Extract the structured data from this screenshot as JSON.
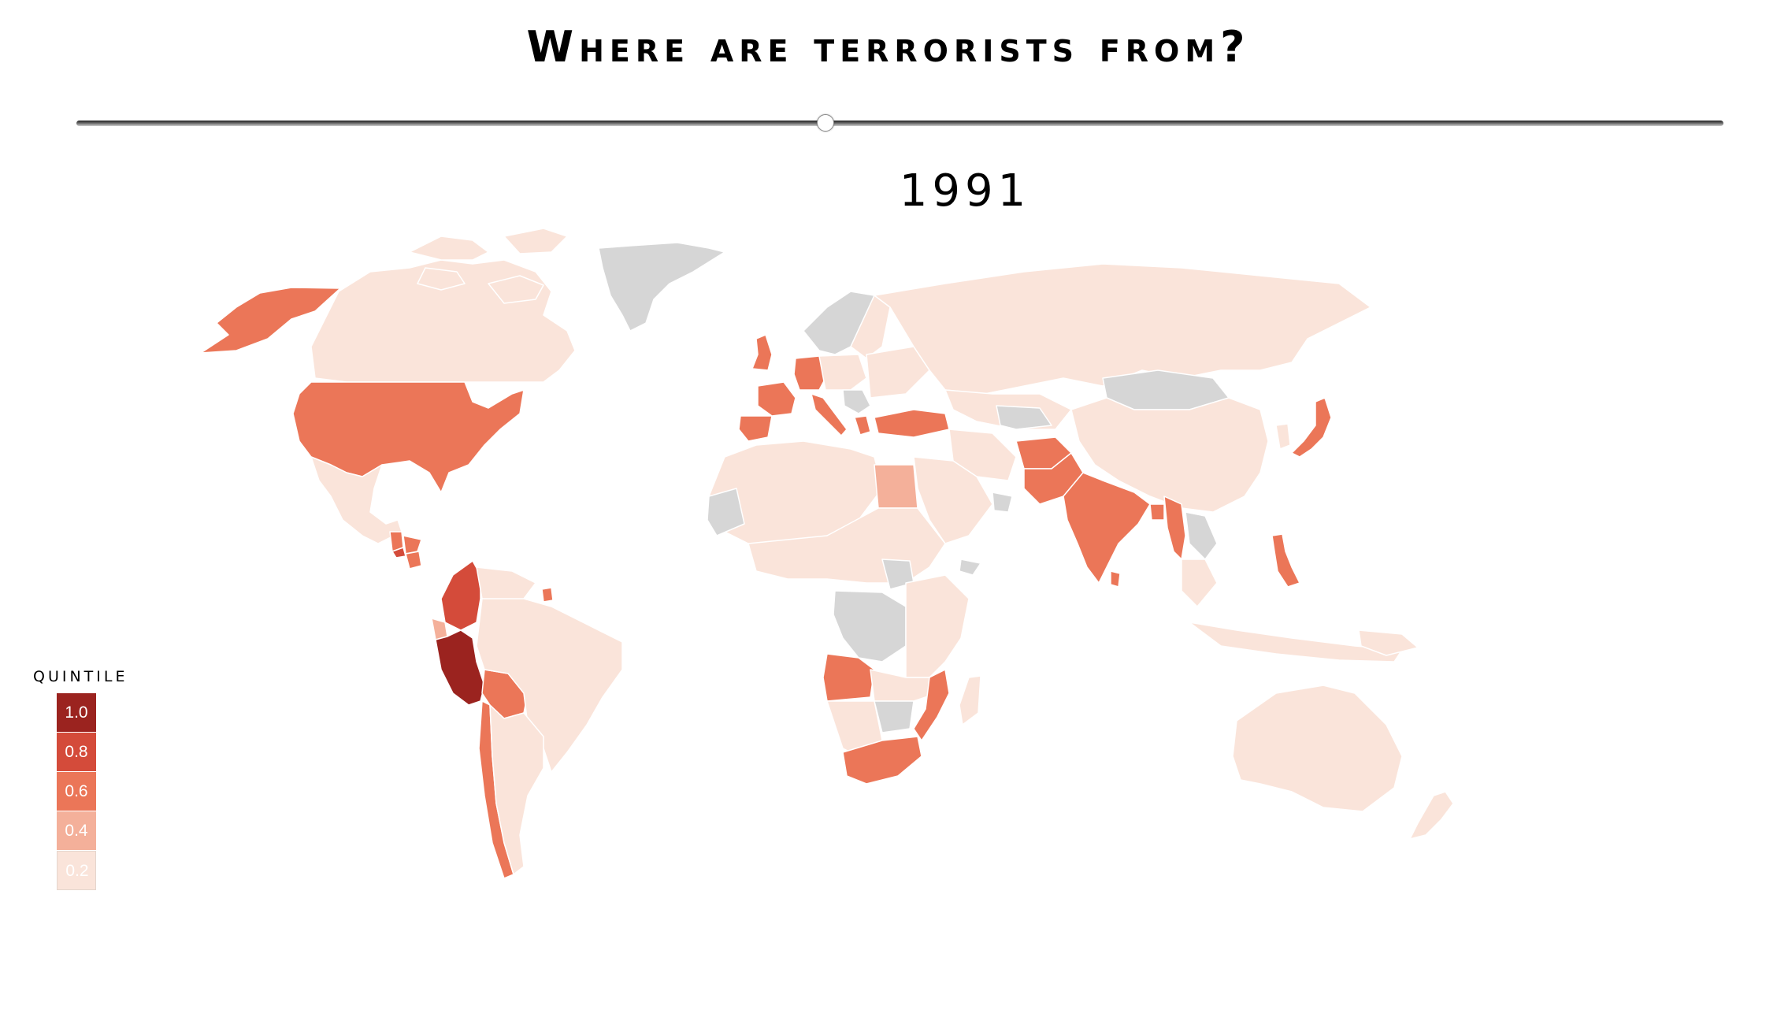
{
  "title": "Where are terrorists from?",
  "year": "1991",
  "slider": {
    "position": 0.455
  },
  "legend": {
    "title": "QUINTILE",
    "items": [
      {
        "label": "1.0",
        "color": "#9b231f"
      },
      {
        "label": "0.8",
        "color": "#d44b3a"
      },
      {
        "label": "0.6",
        "color": "#eb7658"
      },
      {
        "label": "0.4",
        "color": "#f4b09a"
      },
      {
        "label": "0.2",
        "color": "#fae4da"
      }
    ]
  },
  "colors": {
    "no_data": "#d6d6d6",
    "border": "#ffffff",
    "q1": "#9b231f",
    "q08": "#d44b3a",
    "q06": "#eb7658",
    "q04": "#f4b09a",
    "q02": "#fae4da"
  },
  "countries": [
    {
      "name": "Peru",
      "quintile": 1.0
    },
    {
      "name": "Colombia",
      "quintile": 0.8
    },
    {
      "name": "El Salvador",
      "quintile": 0.8
    },
    {
      "name": "United States",
      "quintile": 0.6
    },
    {
      "name": "Alaska",
      "quintile": 0.6
    },
    {
      "name": "Guatemala",
      "quintile": 0.6
    },
    {
      "name": "Honduras",
      "quintile": 0.6
    },
    {
      "name": "Nicaragua",
      "quintile": 0.6
    },
    {
      "name": "Bolivia",
      "quintile": 0.6
    },
    {
      "name": "Chile",
      "quintile": 0.6
    },
    {
      "name": "Suriname",
      "quintile": 0.6
    },
    {
      "name": "United Kingdom",
      "quintile": 0.6
    },
    {
      "name": "France",
      "quintile": 0.6
    },
    {
      "name": "Spain",
      "quintile": 0.6
    },
    {
      "name": "Germany",
      "quintile": 0.6
    },
    {
      "name": "Italy",
      "quintile": 0.6
    },
    {
      "name": "Greece",
      "quintile": 0.6
    },
    {
      "name": "Turkey",
      "quintile": 0.6
    },
    {
      "name": "Pakistan",
      "quintile": 0.6
    },
    {
      "name": "Afghanistan",
      "quintile": 0.6
    },
    {
      "name": "India",
      "quintile": 0.6
    },
    {
      "name": "Sri Lanka",
      "quintile": 0.6
    },
    {
      "name": "Bangladesh",
      "quintile": 0.6
    },
    {
      "name": "Myanmar",
      "quintile": 0.6
    },
    {
      "name": "Philippines",
      "quintile": 0.6
    },
    {
      "name": "Japan",
      "quintile": 0.6
    },
    {
      "name": "Angola",
      "quintile": 0.6
    },
    {
      "name": "Mozambique",
      "quintile": 0.6
    },
    {
      "name": "South Africa",
      "quintile": 0.6
    },
    {
      "name": "Egypt",
      "quintile": 0.4
    },
    {
      "name": "Ecuador",
      "quintile": 0.4
    },
    {
      "name": "Canada",
      "quintile": 0.2
    },
    {
      "name": "Mexico",
      "quintile": 0.2
    },
    {
      "name": "Brazil",
      "quintile": 0.2
    },
    {
      "name": "Argentina",
      "quintile": 0.2
    },
    {
      "name": "Venezuela",
      "quintile": 0.2
    },
    {
      "name": "Russia",
      "quintile": 0.2
    },
    {
      "name": "China",
      "quintile": 0.2
    },
    {
      "name": "Australia",
      "quintile": 0.2
    },
    {
      "name": "Greenland",
      "quintile": null
    },
    {
      "name": "Mongolia",
      "quintile": null
    },
    {
      "name": "DR Congo",
      "quintile": null
    },
    {
      "name": "Mauritania",
      "quintile": null
    },
    {
      "name": "Laos",
      "quintile": null
    }
  ]
}
